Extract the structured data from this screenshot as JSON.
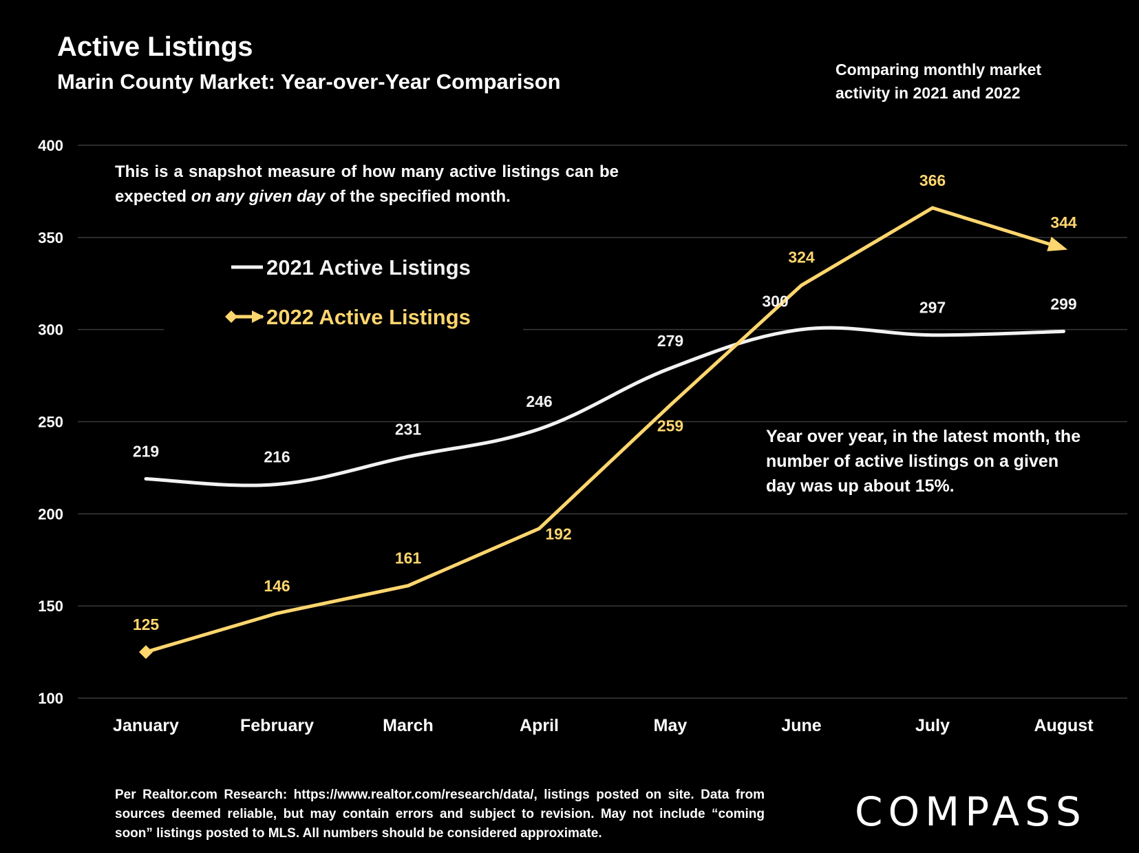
{
  "title": "Active Listings",
  "subtitle": "Marin County Market: Year-over-Year Comparison",
  "corner_note": "Comparing monthly market activity in 2021 and 2022",
  "snapshot_note": {
    "before": "This is a snapshot measure of how many active listings can be expected ",
    "emphasis": "on any given day",
    "after": " of the specified month."
  },
  "yoy_note": "Year over year, in the latest month, the number of active listings on a given day was up about 15%.",
  "footer": "Per Realtor.com Research:  https://www.realtor.com/research/data/, listings posted on site. Data from sources deemed reliable, but may contain errors and subject to revision. May not include “coming soon” listings posted to MLS. All numbers should be considered approximate.",
  "logo_text": "COMPASS",
  "colors": {
    "background": "#000000",
    "series_2021": "#f2f2f2",
    "series_2022": "#ffd66e",
    "gridline": "#3a3a3a"
  },
  "chart_data": {
    "type": "line",
    "categories": [
      "January",
      "February",
      "March",
      "April",
      "May",
      "June",
      "July",
      "August"
    ],
    "series": [
      {
        "name": "2021 Active Listings",
        "values": [
          219,
          216,
          231,
          246,
          279,
          300,
          297,
          299
        ],
        "color": "#f2f2f2",
        "smooth": true
      },
      {
        "name": "2022 Active Listings",
        "values": [
          125,
          146,
          161,
          192,
          259,
          324,
          366,
          344
        ],
        "color": "#ffd66e",
        "markers": "diamond-start-arrow-end"
      }
    ],
    "ylim": [
      100,
      400
    ],
    "yticks": [
      100,
      150,
      200,
      250,
      300,
      350,
      400
    ],
    "grid": true,
    "legend_position": "upper-left inside plot",
    "data_labels": true
  }
}
